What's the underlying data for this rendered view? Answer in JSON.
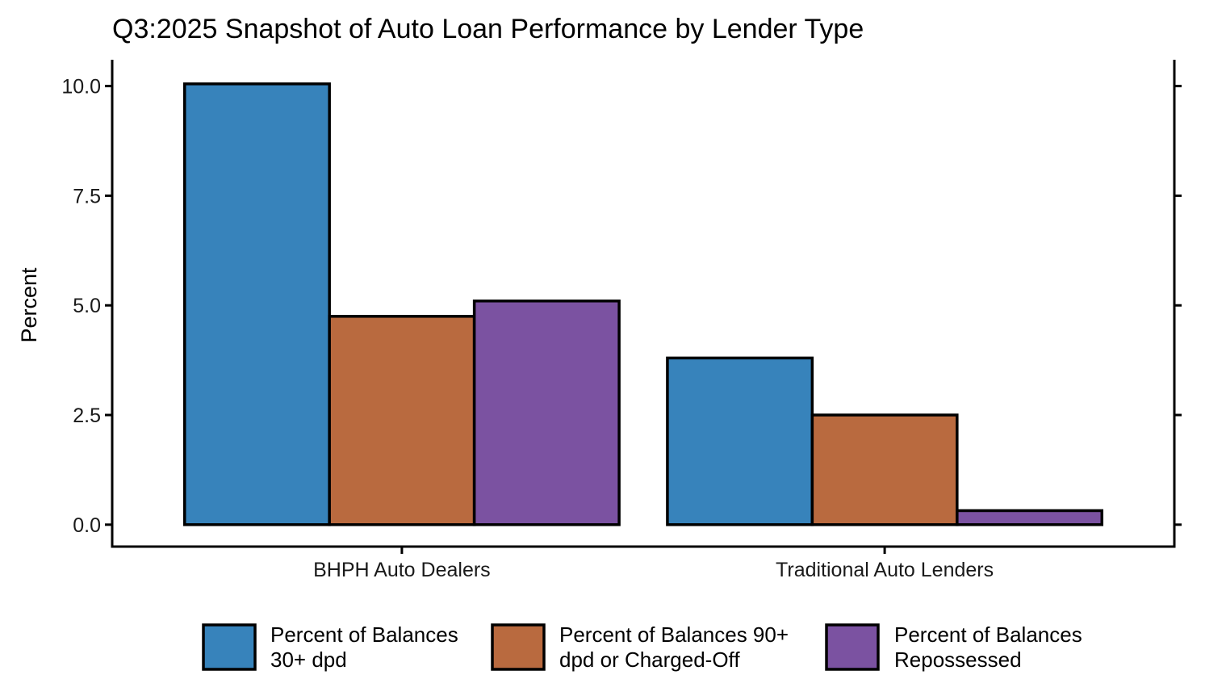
{
  "chart_data": {
    "type": "bar",
    "title": "Q3:2025 Snapshot of Auto Loan Performance by Lender Type",
    "xlabel": "",
    "ylabel": "Percent",
    "categories": [
      "BHPH Auto Dealers",
      "Traditional Auto Lenders"
    ],
    "series": [
      {
        "name": "Percent of Balances 30+ dpd",
        "legend_lines": [
          "Percent of Balances",
          "30+ dpd"
        ],
        "color": "#3783BB",
        "values": [
          10.05,
          3.8
        ]
      },
      {
        "name": "Percent of Balances 90+ dpd or Charged-Off",
        "legend_lines": [
          "Percent of Balances 90+",
          "dpd or Charged-Off"
        ],
        "color": "#B96A3F",
        "values": [
          4.75,
          2.5
        ]
      },
      {
        "name": "Percent of Balances Repossessed",
        "legend_lines": [
          "Percent of Balances",
          "Repossessed"
        ],
        "color": "#7B52A1",
        "values": [
          5.1,
          0.32
        ]
      }
    ],
    "y_ticks": [
      "0.0",
      "2.5",
      "5.0",
      "7.5",
      "10.0"
    ],
    "ylim": [
      -0.5,
      10.6
    ],
    "grid": false,
    "legend_position": "bottom",
    "bar_outline_color": "#000000"
  }
}
